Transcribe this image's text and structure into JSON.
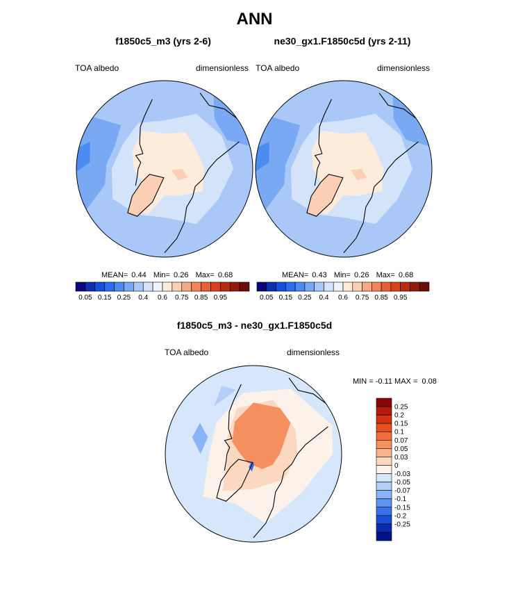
{
  "title": "ANN",
  "panels": [
    {
      "title": "f1850c5_m3 (yrs 2-6)",
      "variable": "TOA albedo",
      "units": "dimensionless",
      "stats": {
        "mean_label": "MEAN=",
        "mean": "0.44",
        "min_label": "Min=",
        "min": "0.26",
        "max_label": "Max=",
        "max": "0.68"
      }
    },
    {
      "title": "ne30_gx1.F1850c5d (yrs 2-11)",
      "variable": "TOA albedo",
      "units": "dimensionless",
      "stats": {
        "mean_label": "MEAN=",
        "mean": "0.43",
        "min_label": "Min=",
        "min": "0.26",
        "max_label": "Max=",
        "max": "0.68"
      }
    }
  ],
  "diff_panel": {
    "title": "f1850c5_m3 - ne30_gx1.F1850c5d",
    "variable": "TOA albedo",
    "units": "dimensionless",
    "stats": {
      "min_label": "MIN =",
      "min": "-0.11",
      "max_label": "MAX =",
      "max": "0.08"
    }
  },
  "chart_data": [
    {
      "type": "heatmap",
      "projection": "north polar stereographic",
      "title": "f1850c5_m3 (yrs 2-6)",
      "variable": "TOA albedo",
      "units": "dimensionless",
      "mean": 0.44,
      "min": 0.26,
      "max": 0.68,
      "colorbar": {
        "tick_labels": [
          "0.05",
          "0.15",
          "0.25",
          "0.4",
          "0.6",
          "0.75",
          "0.85",
          "0.95"
        ],
        "levels": [
          0.05,
          0.1,
          0.15,
          0.2,
          0.25,
          0.3,
          0.35,
          0.4,
          0.5,
          0.6,
          0.65,
          0.7,
          0.75,
          0.8,
          0.85,
          0.9,
          0.95
        ],
        "colors": [
          "#08087a",
          "#0d2fb0",
          "#1450e0",
          "#2a6ef0",
          "#4a8cf2",
          "#7aa9f4",
          "#a9c8f7",
          "#d3e4fa",
          "#eef4fd",
          "#fdebdc",
          "#fbcfb4",
          "#f6a983",
          "#f08558",
          "#e95f33",
          "#d9411a",
          "#bb2a10",
          "#961a0a",
          "#6e0c06"
        ]
      }
    },
    {
      "type": "heatmap",
      "projection": "north polar stereographic",
      "title": "ne30_gx1.F1850c5d (yrs 2-11)",
      "variable": "TOA albedo",
      "units": "dimensionless",
      "mean": 0.43,
      "min": 0.26,
      "max": 0.68,
      "colorbar": {
        "tick_labels": [
          "0.05",
          "0.15",
          "0.25",
          "0.4",
          "0.6",
          "0.75",
          "0.85",
          "0.95"
        ],
        "levels": [
          0.05,
          0.1,
          0.15,
          0.2,
          0.25,
          0.3,
          0.35,
          0.4,
          0.5,
          0.6,
          0.65,
          0.7,
          0.75,
          0.8,
          0.85,
          0.9,
          0.95
        ],
        "colors": [
          "#08087a",
          "#0d2fb0",
          "#1450e0",
          "#2a6ef0",
          "#4a8cf2",
          "#7aa9f4",
          "#a9c8f7",
          "#d3e4fa",
          "#eef4fd",
          "#fdebdc",
          "#fbcfb4",
          "#f6a983",
          "#f08558",
          "#e95f33",
          "#d9411a",
          "#bb2a10",
          "#961a0a",
          "#6e0c06"
        ]
      }
    },
    {
      "type": "heatmap",
      "projection": "north polar stereographic",
      "title": "f1850c5_m3 - ne30_gx1.F1850c5d",
      "variable": "TOA albedo",
      "units": "dimensionless",
      "min": -0.11,
      "max": 0.08,
      "colorbar": {
        "tick_labels": [
          "0.25",
          "0.2",
          "0.15",
          "0.1",
          "0.07",
          "0.05",
          "0.03",
          "0",
          "-0.03",
          "-0.05",
          "-0.07",
          "-0.1",
          "-0.15",
          "-0.2",
          "-0.25"
        ],
        "colors": [
          "#8a0505",
          "#b31b0b",
          "#d43212",
          "#e8501e",
          "#f26d3a",
          "#f79060",
          "#fab48e",
          "#fdd8c0",
          "#fdf2ea",
          "#d7e7fb",
          "#b4d0f8",
          "#8ab4f5",
          "#5f93f1",
          "#3a70ea",
          "#1a4ed9",
          "#0b2ab0",
          "#061585"
        ],
        "orientation": "vertical"
      }
    }
  ]
}
